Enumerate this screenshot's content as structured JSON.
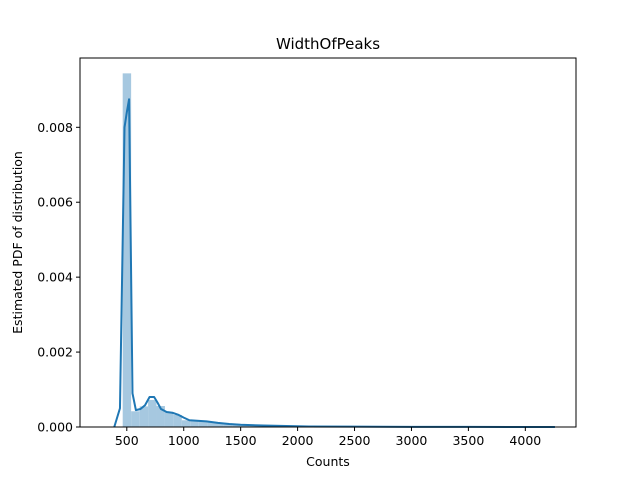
{
  "chart_data": {
    "type": "bar",
    "title": "WidthOfPeaks",
    "xlabel": "Counts",
    "ylabel": "Estimated PDF of distribution",
    "xlim": [
      89,
      4445
    ],
    "ylim": [
      0,
      0.00985
    ],
    "x_ticks": [
      500,
      1000,
      1500,
      2000,
      2500,
      3000,
      3500,
      4000
    ],
    "x_tick_labels": [
      "500",
      "1000",
      "1500",
      "2000",
      "2500",
      "3000",
      "3500",
      "4000"
    ],
    "y_ticks": [
      0,
      0.002,
      0.004,
      0.006,
      0.008
    ],
    "y_tick_labels": [
      "0.000",
      "0.002",
      "0.004",
      "0.006",
      "0.008"
    ],
    "grid": false,
    "legend": "none",
    "colors": {
      "hist": "#a6c8e0",
      "kde": "#1f77b4",
      "axes": "#000000"
    },
    "histogram": {
      "bin_edges": [
        464,
        538,
        613,
        687,
        761,
        835,
        909,
        983,
        1057,
        1131,
        1205,
        1279,
        1353,
        1427,
        1501,
        1575,
        1649,
        1723,
        1797,
        1871,
        1945,
        2019,
        2093,
        2167,
        2241,
        2315,
        2389,
        2463,
        2537,
        2611,
        2685,
        2759,
        2833,
        2907,
        2981,
        3055,
        3129,
        3203,
        3277,
        3351,
        3425,
        3499,
        3573,
        3647,
        3721,
        3795,
        3869,
        3943,
        4017,
        4091,
        4165,
        4239
      ],
      "density": [
        0.00944,
        0.00042,
        0.00055,
        0.00072,
        0.00056,
        0.0004,
        0.00032,
        0.00018,
        0.00016,
        0.00015,
        0.00012,
        0.0001,
        8e-05,
        6e-05,
        5e-05,
        4e-05,
        3e-05,
        2.5e-05,
        2e-05,
        1.5e-05,
        1.2e-05,
        1e-05,
        8e-06,
        7e-06,
        6e-06,
        5e-06,
        4e-06,
        4e-06,
        3e-06,
        3e-06,
        3e-06,
        2e-06,
        2e-06,
        2e-06,
        2e-06,
        2e-06,
        1e-06,
        1e-06,
        1e-06,
        1e-06,
        1e-06,
        1e-06,
        1e-06,
        1e-06,
        1e-06,
        1e-06,
        1e-06,
        1e-06,
        1e-06,
        1e-06,
        1e-06
      ]
    },
    "kde": {
      "x": [
        390,
        440,
        480,
        500,
        520,
        550,
        580,
        620,
        660,
        700,
        740,
        770,
        800,
        850,
        900,
        950,
        1000,
        1050,
        1100,
        1200,
        1300,
        1400,
        1500,
        1700,
        1900,
        2100,
        2500,
        3000,
        3500,
        4000,
        4260
      ],
      "y": [
        0,
        0.0005,
        0.008,
        0.0084,
        0.00875,
        0.0009,
        0.00045,
        0.00048,
        0.00058,
        0.0008,
        0.0008,
        0.00065,
        0.00048,
        0.0004,
        0.00038,
        0.00033,
        0.00025,
        0.00018,
        0.00017,
        0.00015,
        0.00011,
        8e-05,
        6e-05,
        4e-05,
        2.5e-05,
        1.5e-05,
        1e-05,
        4e-06,
        2e-06,
        1e-06,
        0
      ]
    }
  }
}
